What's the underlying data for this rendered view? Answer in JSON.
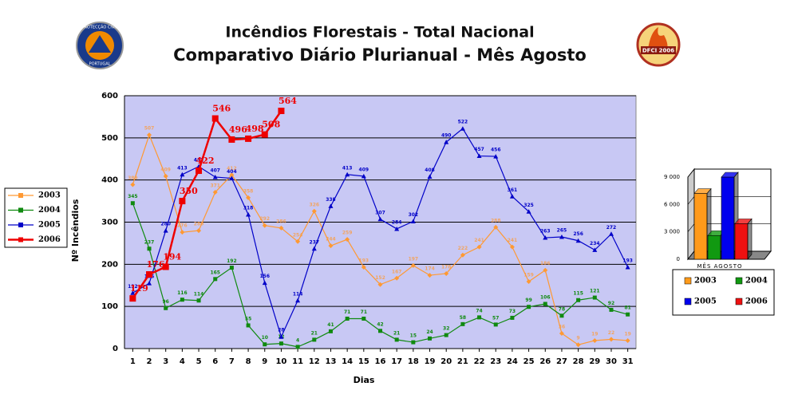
{
  "logos": {
    "left": [
      "PROTECÇÃO CIVIL",
      "PORTUGAL"
    ],
    "right": "DFCI 2006"
  },
  "chart_data": [
    {
      "type": "line",
      "title": "Incêndios Florestais - Total Nacional",
      "subtitle": "Comparativo Diário Plurianual - Mês Agosto",
      "x_label": "Dias",
      "y_label": "Nº Incêndios",
      "categories": [
        1,
        2,
        3,
        4,
        5,
        6,
        7,
        8,
        9,
        10,
        11,
        12,
        13,
        14,
        15,
        16,
        17,
        18,
        19,
        20,
        21,
        22,
        23,
        24,
        25,
        26,
        27,
        28,
        29,
        30,
        31
      ],
      "ylim": [
        0,
        600
      ],
      "yticks": [
        0,
        100,
        200,
        300,
        400,
        500,
        600
      ],
      "grid": true,
      "legend": "left",
      "series": [
        {
          "name": "2003",
          "color": "#ff9933",
          "values": [
            389,
            507,
            409,
            276,
            280,
            371,
            412,
            358,
            292,
            286,
            254,
            326,
            244,
            259,
            193,
            152,
            167,
            197,
            174,
            178,
            222,
            241,
            288,
            241,
            159,
            186,
            36,
            9,
            19,
            22,
            19
          ]
        },
        {
          "name": "2004",
          "color": "#108a10",
          "values": [
            345,
            237,
            96,
            116,
            114,
            165,
            192,
            55,
            10,
            12,
            4,
            21,
            41,
            71,
            71,
            42,
            21,
            15,
            24,
            32,
            58,
            74,
            57,
            73,
            99,
            106,
            78,
            115,
            121,
            92,
            81
          ]
        },
        {
          "name": "2005",
          "color": "#0000c8",
          "values": [
            132,
            155,
            280,
            413,
            432,
            407,
            404,
            318,
            156,
            28,
            114,
            237,
            338,
            413,
            409,
            307,
            284,
            302,
            408,
            490,
            522,
            457,
            456,
            361,
            325,
            263,
            265,
            256,
            234,
            272,
            193
          ]
        },
        {
          "name": "2006",
          "color": "#ee0000",
          "values": [
            119,
            176,
            194,
            350,
            422,
            546,
            496,
            498,
            508,
            564,
            null,
            null,
            null,
            null,
            null,
            null,
            null,
            null,
            null,
            null,
            null,
            null,
            null,
            null,
            null,
            null,
            null,
            null,
            null,
            null,
            null
          ]
        }
      ]
    },
    {
      "type": "bar",
      "categories": [
        "MÊS AGOSTO"
      ],
      "ylim": [
        0,
        9000
      ],
      "yticks": [
        0,
        {
          "value": 3000,
          "label": "3 000"
        },
        {
          "value": 6000,
          "label": "6 000"
        },
        {
          "value": 9000,
          "label": "9 000"
        }
      ],
      "grid": true,
      "legend": "bottom",
      "series": [
        {
          "name": "2003",
          "color": "#ff9a1a",
          "values": [
            7200
          ]
        },
        {
          "name": "2004",
          "color": "#119911",
          "values": [
            2600
          ]
        },
        {
          "name": "2005",
          "color": "#0000ee",
          "values": [
            9000
          ]
        },
        {
          "name": "2006",
          "color": "#ee1111",
          "values": [
            3900
          ]
        }
      ]
    }
  ]
}
